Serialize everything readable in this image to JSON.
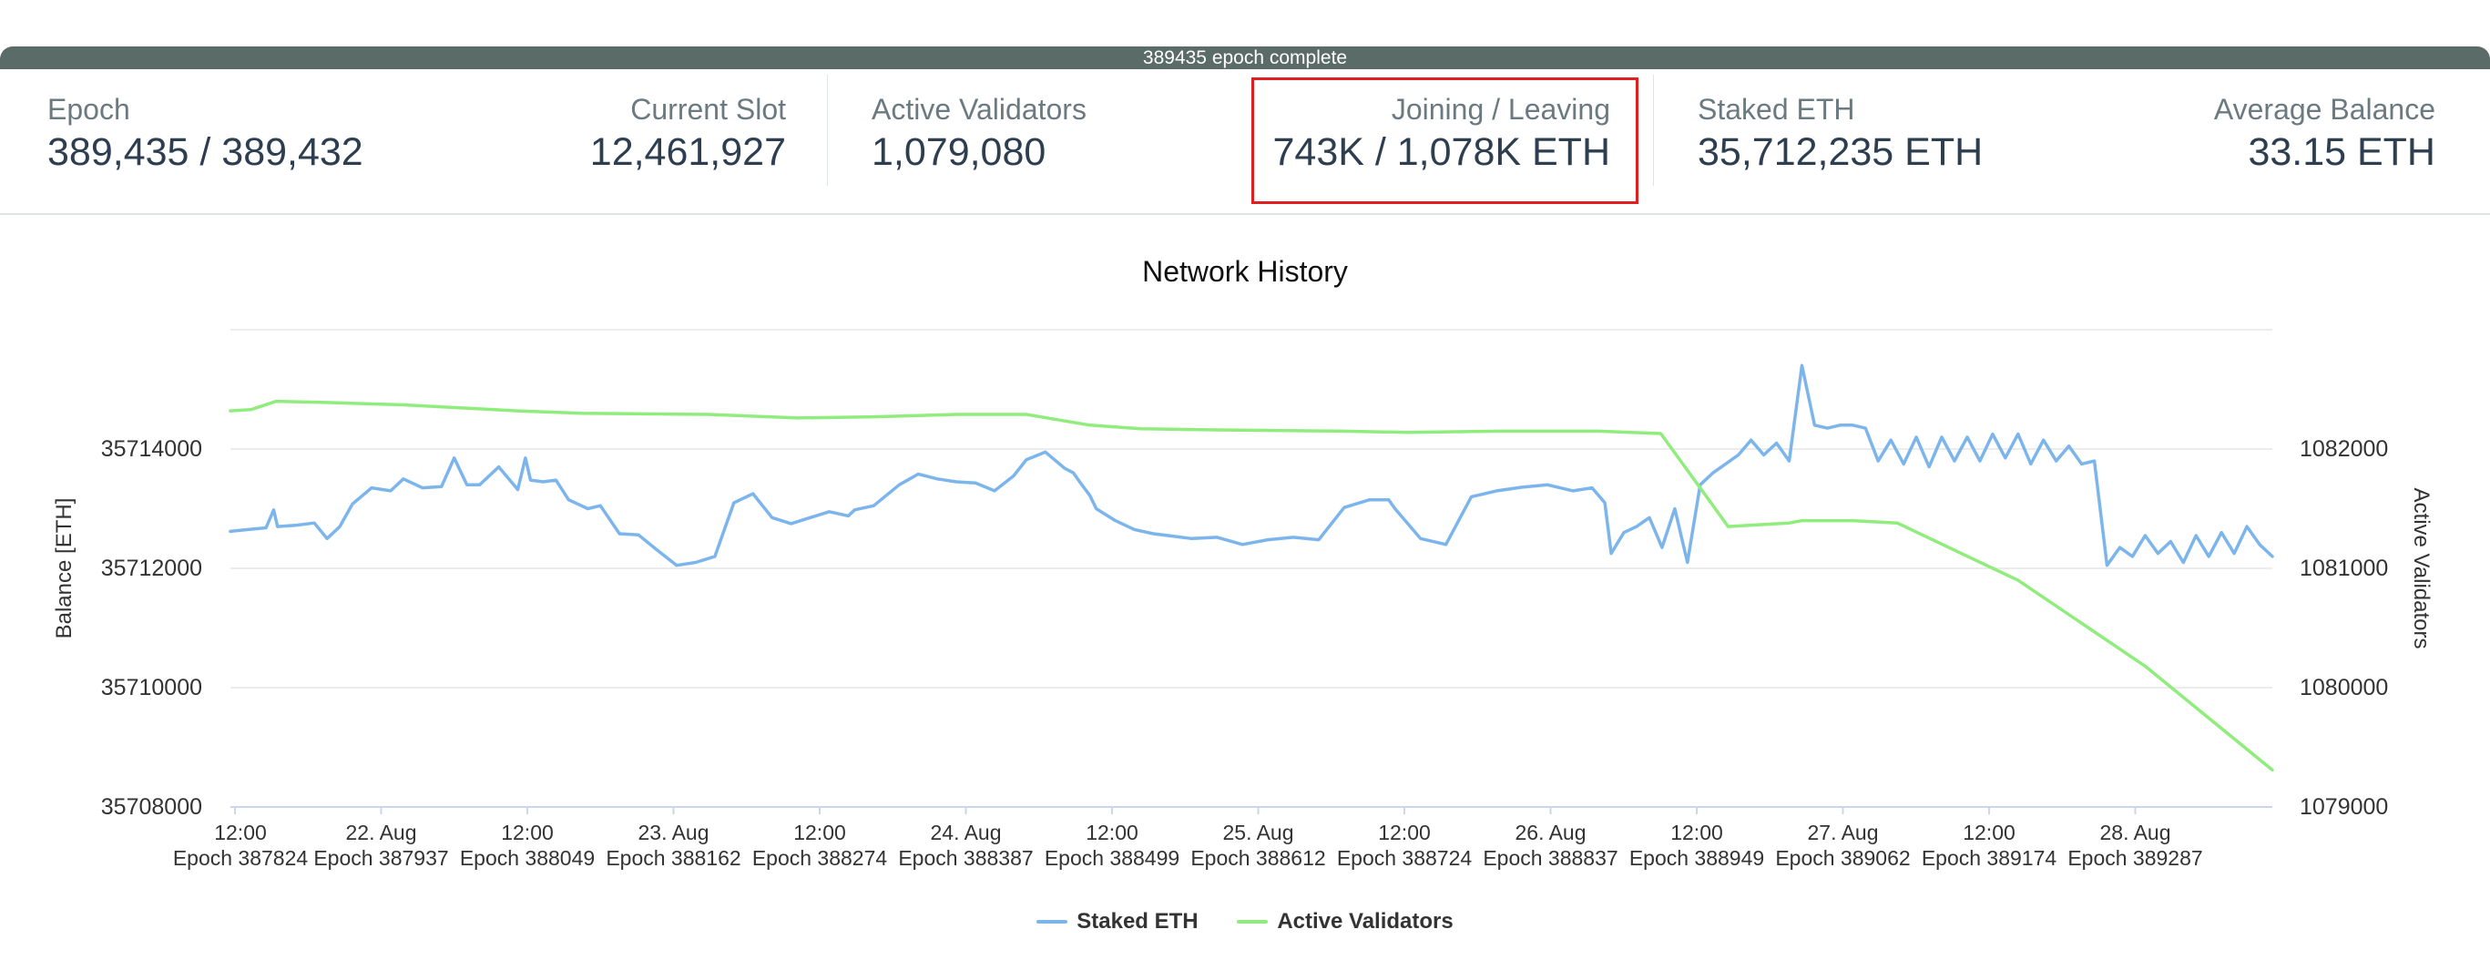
{
  "progress": {
    "label": "389435 epoch complete"
  },
  "stats": {
    "epoch": {
      "label": "Epoch",
      "value": "389,435 / 389,432"
    },
    "current_slot": {
      "label": "Current Slot",
      "value": "12,461,927"
    },
    "active_validators": {
      "label": "Active Validators",
      "value": "1,079,080"
    },
    "joining_leaving": {
      "label": "Joining / Leaving",
      "value": "743K / 1,078K ETH"
    },
    "staked_eth": {
      "label": "Staked ETH",
      "value": "35,712,235 ETH"
    },
    "average_balance": {
      "label": "Average Balance",
      "value": "33.15 ETH"
    }
  },
  "chart": {
    "title": "Network History",
    "ylabel_left": "Balance [ETH]",
    "ylabel_right": "Active Validators",
    "left_ticks": [
      "35714000",
      "35712000",
      "35710000",
      "35708000"
    ],
    "right_ticks": [
      "1082000",
      "1081000",
      "1080000",
      "1079000"
    ],
    "x_ticks": [
      {
        "top": "12:00",
        "bottom": "Epoch 387824"
      },
      {
        "top": "22. Aug",
        "bottom": "Epoch 387937"
      },
      {
        "top": "12:00",
        "bottom": "Epoch 388049"
      },
      {
        "top": "23. Aug",
        "bottom": "Epoch 388162"
      },
      {
        "top": "12:00",
        "bottom": "Epoch 388274"
      },
      {
        "top": "24. Aug",
        "bottom": "Epoch 388387"
      },
      {
        "top": "12:00",
        "bottom": "Epoch 388499"
      },
      {
        "top": "25. Aug",
        "bottom": "Epoch 388612"
      },
      {
        "top": "12:00",
        "bottom": "Epoch 388724"
      },
      {
        "top": "26. Aug",
        "bottom": "Epoch 388837"
      },
      {
        "top": "12:00",
        "bottom": "Epoch 388949"
      },
      {
        "top": "27. Aug",
        "bottom": "Epoch 389062"
      },
      {
        "top": "12:00",
        "bottom": "Epoch 389174"
      },
      {
        "top": "28. Aug",
        "bottom": "Epoch 389287"
      }
    ],
    "legend": [
      {
        "name": "Staked ETH",
        "color": "#7cb5ec"
      },
      {
        "name": "Active Validators",
        "color": "#90ed7d"
      }
    ],
    "colors": {
      "staked": "#7cb5ec",
      "validators": "#90ed7d",
      "grid": "#e6e6e6"
    }
  },
  "chart_data": {
    "type": "line",
    "title": "Network History",
    "x_range_epochs": [
      387824,
      389430
    ],
    "left_axis": {
      "label": "Balance [ETH]",
      "ylim": [
        35708000,
        35716000
      ]
    },
    "right_axis": {
      "label": "Active Validators",
      "ylim": [
        1079000,
        1083000
      ]
    },
    "series": [
      {
        "name": "Staked ETH",
        "axis": "left",
        "x": [
          387824,
          387838,
          387852,
          387858,
          387861,
          387875,
          387890,
          387900,
          387910,
          387920,
          387935,
          387950,
          387960,
          387975,
          387990,
          388000,
          388010,
          388020,
          388035,
          388050,
          388056,
          388060,
          388070,
          388080,
          388090,
          388100,
          388105,
          388115,
          388130,
          388145,
          388160,
          388175,
          388190,
          388205,
          388220,
          388235,
          388250,
          388265,
          388280,
          388295,
          388310,
          388315,
          388330,
          388350,
          388365,
          388380,
          388395,
          388410,
          388425,
          388440,
          388450,
          388465,
          388480,
          388487,
          388493,
          388500,
          388505,
          388520,
          388535,
          388550,
          388565,
          388580,
          388600,
          388620,
          388640,
          388660,
          388680,
          388700,
          388720,
          388735,
          388740,
          388760,
          388780,
          388800,
          388820,
          388840,
          388860,
          388880,
          388895,
          388905,
          388910,
          388920,
          388930,
          388940,
          388950,
          388960,
          388970,
          388980,
          388990,
          389000,
          389010,
          389020,
          389030,
          389040,
          389050,
          389060,
          389070,
          389080,
          389090,
          389100,
          389110,
          389120,
          389130,
          389140,
          389150,
          389160,
          389170,
          389180,
          389190,
          389200,
          389210,
          389220,
          389230,
          389240,
          389250,
          389260,
          389270,
          389280,
          389290,
          389300,
          389310,
          389320,
          389330,
          389340,
          389350,
          389360,
          389370,
          389380,
          389390,
          389400,
          389410,
          389420,
          389430
        ],
        "y": [
          35712620,
          35712650,
          35712680,
          35712980,
          35712700,
          35712720,
          35712760,
          35712500,
          35712700,
          35713080,
          35713350,
          35713300,
          35713500,
          35713350,
          35713370,
          35713850,
          35713400,
          35713400,
          35713700,
          35713320,
          35713850,
          35713480,
          35713450,
          35713480,
          35713150,
          35713050,
          35713000,
          35713050,
          35712580,
          35712560,
          35712300,
          35712050,
          35712100,
          35712200,
          35713100,
          35713250,
          35712850,
          35712750,
          35712850,
          35712950,
          35712880,
          35712980,
          35713050,
          35713400,
          35713580,
          35713500,
          35713450,
          35713430,
          35713300,
          35713550,
          35713820,
          35713950,
          35713680,
          35713600,
          35713420,
          35713220,
          35713000,
          35712800,
          35712650,
          35712580,
          35712540,
          35712500,
          35712520,
          35712400,
          35712480,
          35712520,
          35712480,
          35713020,
          35713150,
          35713150,
          35713000,
          35712500,
          35712400,
          35713200,
          35713300,
          35713360,
          35713400,
          35713300,
          35713350,
          35713100,
          35712250,
          35712600,
          35712700,
          35712850,
          35712350,
          35713000,
          35712100,
          35713400,
          35713600,
          35713750,
          35713900,
          35714150,
          35713900,
          35714100,
          35713800,
          35715400,
          35714400,
          35714350,
          35714400,
          35714400,
          35714350,
          35713800,
          35714150,
          35713750,
          35714200,
          35713700,
          35714200,
          35713800,
          35714200,
          35713800,
          35714250,
          35713850,
          35714250,
          35713750,
          35714150,
          35713800,
          35714050,
          35713750,
          35713800,
          35712050,
          35712350,
          35712200,
          35712550,
          35712250,
          35712450,
          35712100,
          35712550,
          35712200,
          35712600,
          35712250,
          35712700,
          35712400,
          35712200
        ],
        "color": "#7cb5ec"
      },
      {
        "name": "Active Validators",
        "axis": "right",
        "x": [
          387824,
          387840,
          387860,
          387900,
          387960,
          388050,
          388100,
          388200,
          388270,
          388330,
          388395,
          388450,
          388500,
          388540,
          388600,
          388700,
          388750,
          388820,
          388900,
          388949,
          389002,
          389050,
          389060,
          389100,
          389135,
          389230,
          389330,
          389430
        ],
        "y": [
          1082320,
          1082330,
          1082400,
          1082390,
          1082370,
          1082320,
          1082300,
          1082290,
          1082260,
          1082270,
          1082290,
          1082290,
          1082200,
          1082170,
          1082160,
          1082150,
          1082140,
          1082150,
          1082150,
          1082130,
          1081350,
          1081380,
          1081400,
          1081400,
          1081380,
          1080900,
          1080180,
          1079310
        ],
        "color": "#90ed7d"
      }
    ]
  }
}
